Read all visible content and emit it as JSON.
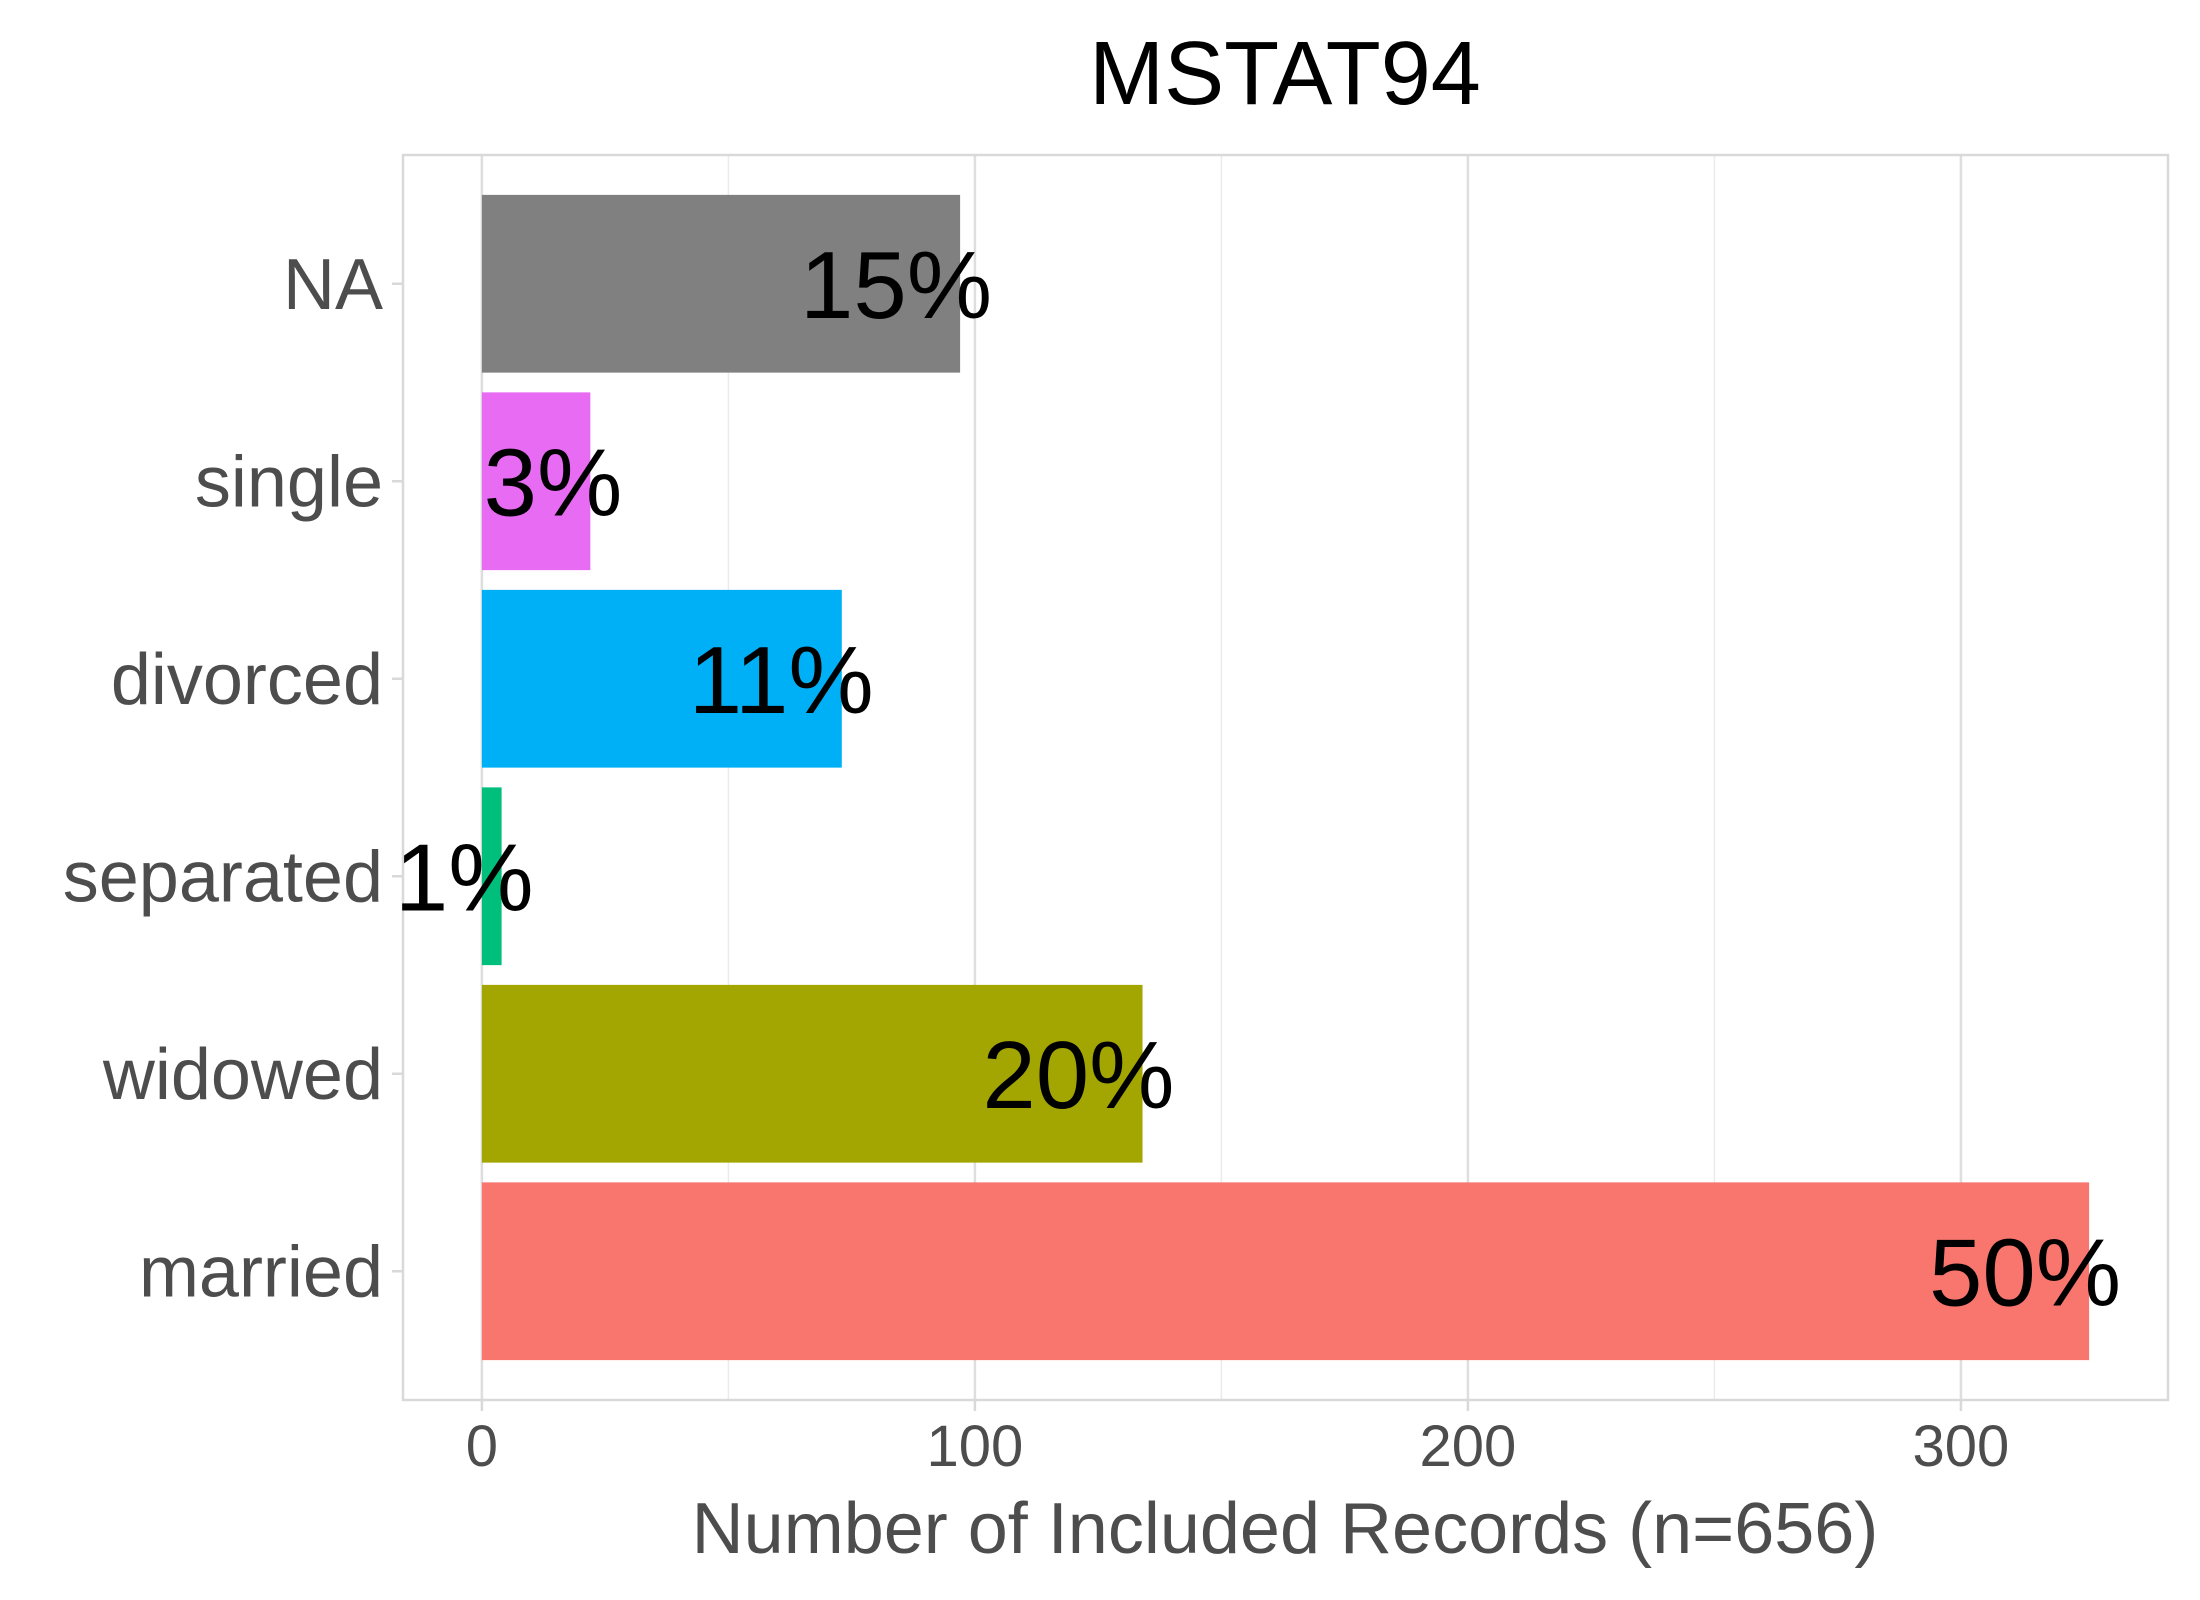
{
  "chart_data": {
    "type": "bar",
    "orientation": "horizontal",
    "title": "MSTAT94",
    "xlabel": "Number of Included Records (n=656)",
    "ylabel": "",
    "categories": [
      "NA",
      "single",
      "divorced",
      "separated",
      "widowed",
      "married"
    ],
    "values": [
      97,
      22,
      73,
      4,
      134,
      326
    ],
    "data_labels": [
      "15%",
      "3%",
      "11%",
      "1%",
      "20%",
      "50%"
    ],
    "colors": [
      "#808080",
      "#E76BF3",
      "#00B0F6",
      "#00BF7D",
      "#A3A500",
      "#F8766D"
    ],
    "xticks": [
      0,
      100,
      200,
      300
    ],
    "xtick_labels": [
      "0",
      "100",
      "200",
      "300"
    ],
    "xlim": [
      -16,
      342
    ],
    "grid": true,
    "legend": "none"
  }
}
